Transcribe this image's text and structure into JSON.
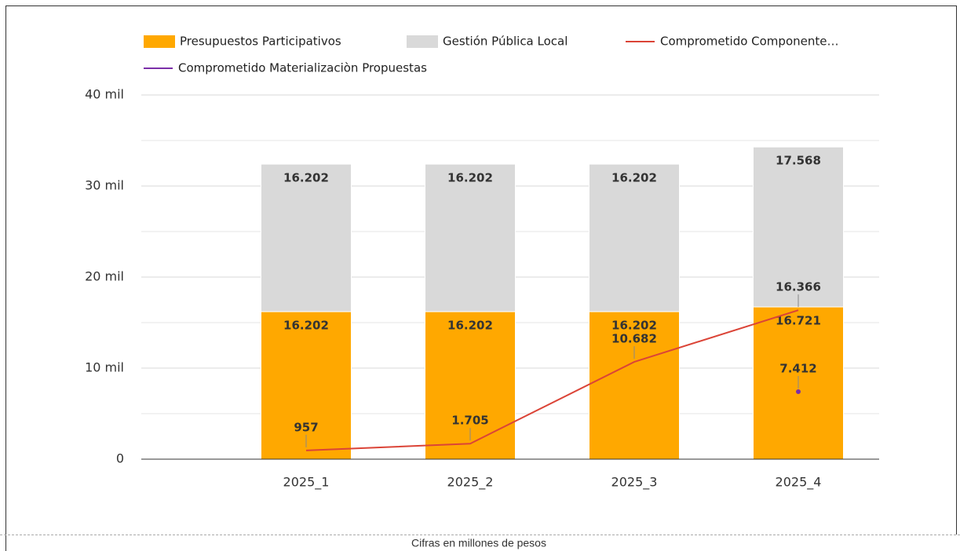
{
  "chart_data": {
    "type": "bar",
    "stacked": true,
    "categories": [
      null,
      "2025_1",
      "2025_2",
      "2025_3",
      "2025_4"
    ],
    "series": [
      {
        "name": "Presupuestos Participativos",
        "type": "bar",
        "color": "#ffa800",
        "values": [
          null,
          16202,
          16202,
          16202,
          16721
        ],
        "value_labels": [
          null,
          "16.202",
          "16.202",
          "16.202",
          "16.721"
        ]
      },
      {
        "name": "Gestión Pública Local",
        "type": "bar",
        "color": "#d9d9d9",
        "values": [
          null,
          16202,
          16202,
          16202,
          17568
        ],
        "value_labels": [
          null,
          "16.202",
          "16.202",
          "16.202",
          "17.568"
        ]
      },
      {
        "name": "Comprometido Componente…",
        "type": "line",
        "color": "#db4437",
        "values": [
          null,
          957,
          1705,
          10682,
          16366
        ],
        "value_labels": [
          null,
          "957",
          "1.705",
          "10.682",
          "16.366"
        ]
      },
      {
        "name": "Comprometido Materializaciòn Propuestas",
        "type": "line",
        "color": "#7b2fa8",
        "values": [
          null,
          null,
          null,
          null,
          7412
        ],
        "value_labels": [
          null,
          null,
          null,
          null,
          "7.412"
        ]
      }
    ],
    "ylim": [
      0,
      40000
    ],
    "yticks": [
      0,
      {
        "value": 10000,
        "label": "10 mil"
      },
      {
        "value": 20000,
        "label": "20 mil"
      },
      {
        "value": 30000,
        "label": "30 mil"
      },
      {
        "value": 40000,
        "label": "40 mil"
      }
    ],
    "minor_yticks": [
      5000,
      15000,
      25000,
      35000
    ],
    "grid": true,
    "legend": "top",
    "caption": "Cifras en millones de pesos"
  }
}
